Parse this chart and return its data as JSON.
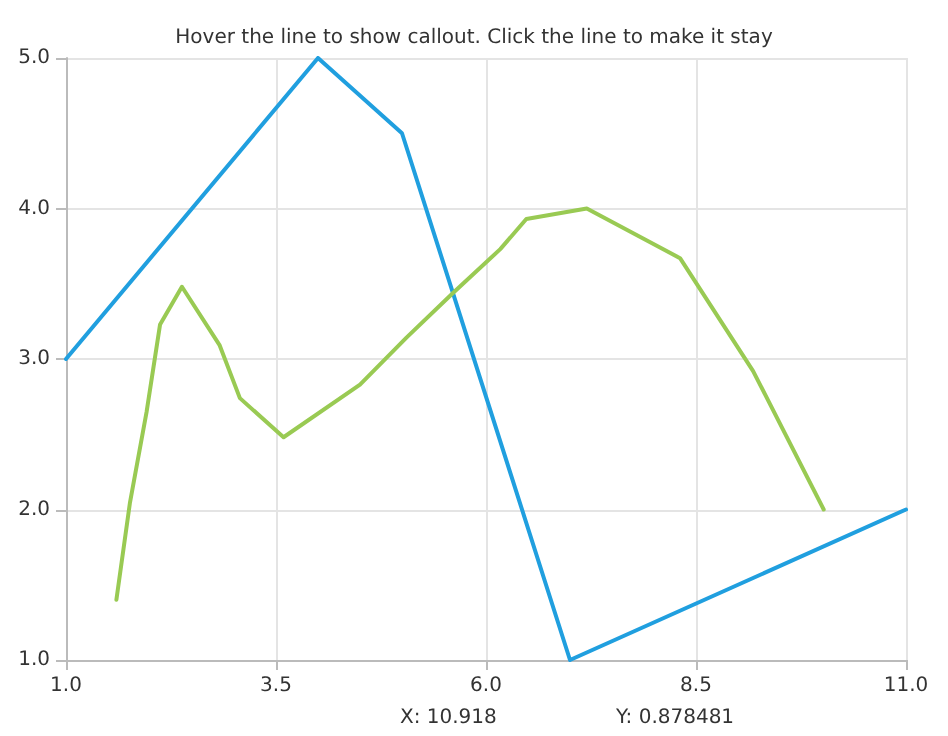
{
  "chart_data": {
    "type": "line",
    "title": "Hover the line to show callout. Click the line to make it stay",
    "series": [
      {
        "color": "#209fdf",
        "x": [
          1,
          4,
          5,
          7,
          11
        ],
        "values": [
          3,
          5,
          4.5,
          1,
          2
        ]
      },
      {
        "color": "#99ca53",
        "x": [
          1.6,
          1.76,
          1.96,
          2.12,
          2.38,
          2.83,
          3.07,
          3.59,
          4.5,
          5.05,
          5.61,
          6.17,
          6.48,
          7.2,
          8.31,
          9.18,
          10.02
        ],
        "values": [
          1.4,
          2.04,
          2.65,
          3.23,
          3.48,
          3.09,
          2.74,
          2.48,
          2.83,
          3.14,
          3.44,
          3.73,
          3.93,
          4.0,
          3.67,
          2.92,
          2.0
        ]
      }
    ],
    "xlim": [
      1,
      11
    ],
    "xticks": [
      {
        "value": 1,
        "label": "1.0"
      },
      {
        "value": 3.5,
        "label": "3.5"
      },
      {
        "value": 6,
        "label": "6.0"
      },
      {
        "value": 8.5,
        "label": "8.5"
      },
      {
        "value": 11,
        "label": "11.0"
      }
    ],
    "ylim": [
      1,
      5
    ],
    "yticks": [
      {
        "value": 1,
        "label": "1.0"
      },
      {
        "value": 2,
        "label": "2.0"
      },
      {
        "value": 3,
        "label": "3.0"
      },
      {
        "value": 4,
        "label": "4.0"
      },
      {
        "value": 5,
        "label": "5.0"
      }
    ],
    "grid": true,
    "marker": "none",
    "line_style": "solid",
    "annotations": [
      "X: 10.918",
      "Y: 0.878481"
    ]
  }
}
